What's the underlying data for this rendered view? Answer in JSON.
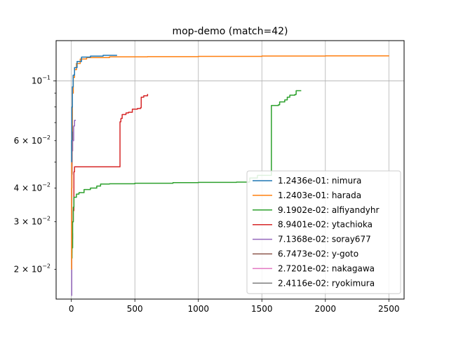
{
  "chart_data": {
    "type": "line",
    "title": "mop-demo (match=42)",
    "xlabel": "",
    "ylabel": "",
    "yscale": "log",
    "xlim": [
      -120,
      2620
    ],
    "ylim": [
      0.0155,
      0.141
    ],
    "grid": true,
    "legend_position": "lower right",
    "x_ticks": [
      {
        "value": 0,
        "label": "0"
      },
      {
        "value": 500,
        "label": "500"
      },
      {
        "value": 1000,
        "label": "1000"
      },
      {
        "value": 1500,
        "label": "1500"
      },
      {
        "value": 2000,
        "label": "2000"
      },
      {
        "value": 2500,
        "label": "2500"
      }
    ],
    "y_ticks": [
      {
        "value": 0.1,
        "base": "10",
        "exp": "−1",
        "coef": ""
      },
      {
        "value": 0.06,
        "base": "10",
        "exp": "−2",
        "coef": "6 × "
      },
      {
        "value": 0.04,
        "base": "10",
        "exp": "−2",
        "coef": "4 × "
      },
      {
        "value": 0.03,
        "base": "10",
        "exp": "−2",
        "coef": "3 × "
      },
      {
        "value": 0.02,
        "base": "10",
        "exp": "−2",
        "coef": "2 × "
      }
    ],
    "series": [
      {
        "name": "1.2436e-01: nimura",
        "color": "#1f77b4",
        "points": [
          [
            0,
            0.05
          ],
          [
            2,
            0.06
          ],
          [
            4,
            0.08
          ],
          [
            8,
            0.095
          ],
          [
            14,
            0.105
          ],
          [
            25,
            0.112
          ],
          [
            45,
            0.118
          ],
          [
            80,
            0.1225
          ],
          [
            150,
            0.1235
          ],
          [
            250,
            0.12436
          ],
          [
            360,
            0.12436
          ]
        ]
      },
      {
        "name": "1.2403e-01: harada",
        "color": "#ff7f0e",
        "points": [
          [
            0,
            0.02
          ],
          [
            2,
            0.04
          ],
          [
            4,
            0.065
          ],
          [
            8,
            0.09
          ],
          [
            15,
            0.103
          ],
          [
            25,
            0.11
          ],
          [
            40,
            0.116
          ],
          [
            70,
            0.1205
          ],
          [
            120,
            0.122
          ],
          [
            300,
            0.1228
          ],
          [
            600,
            0.123
          ],
          [
            1000,
            0.1232
          ],
          [
            1500,
            0.1236
          ],
          [
            2000,
            0.1238
          ],
          [
            2500,
            0.12403
          ]
        ]
      },
      {
        "name": "9.1902e-02: alfiyandyhr",
        "color": "#2ca02c",
        "points": [
          [
            0,
            0.022
          ],
          [
            5,
            0.024
          ],
          [
            10,
            0.03
          ],
          [
            15,
            0.034
          ],
          [
            20,
            0.037
          ],
          [
            40,
            0.038
          ],
          [
            60,
            0.0385
          ],
          [
            100,
            0.0395
          ],
          [
            150,
            0.04
          ],
          [
            200,
            0.0407
          ],
          [
            230,
            0.0414
          ],
          [
            300,
            0.0415
          ],
          [
            500,
            0.0417
          ],
          [
            800,
            0.0419
          ],
          [
            1000,
            0.042
          ],
          [
            1300,
            0.0421
          ],
          [
            1400,
            0.0422
          ],
          [
            1405,
            0.0436
          ],
          [
            1460,
            0.0436
          ],
          [
            1465,
            0.0446
          ],
          [
            1570,
            0.0446
          ],
          [
            1575,
            0.081
          ],
          [
            1630,
            0.0815
          ],
          [
            1640,
            0.0835
          ],
          [
            1680,
            0.085
          ],
          [
            1700,
            0.087
          ],
          [
            1720,
            0.0885
          ],
          [
            1760,
            0.089
          ],
          [
            1770,
            0.0919
          ],
          [
            1810,
            0.0919
          ]
        ]
      },
      {
        "name": "8.9401e-02: ytachioka",
        "color": "#d62728",
        "points": [
          [
            0,
            0.03
          ],
          [
            15,
            0.033
          ],
          [
            20,
            0.046
          ],
          [
            25,
            0.048
          ],
          [
            380,
            0.048
          ],
          [
            383,
            0.0705
          ],
          [
            390,
            0.0725
          ],
          [
            400,
            0.075
          ],
          [
            430,
            0.076
          ],
          [
            450,
            0.0765
          ],
          [
            480,
            0.0785
          ],
          [
            520,
            0.079
          ],
          [
            545,
            0.0795
          ],
          [
            550,
            0.087
          ],
          [
            570,
            0.088
          ],
          [
            600,
            0.0894
          ]
        ]
      },
      {
        "name": "7.1368e-02: soray677",
        "color": "#9467bd",
        "points": [
          [
            0,
            0.016
          ],
          [
            3,
            0.045
          ],
          [
            6,
            0.055
          ],
          [
            10,
            0.06
          ],
          [
            18,
            0.068
          ],
          [
            25,
            0.071368
          ],
          [
            35,
            0.071368
          ]
        ]
      },
      {
        "name": "6.7473e-02: y-goto",
        "color": "#8c564b",
        "points": [
          [
            0,
            0.035
          ],
          [
            3,
            0.05
          ],
          [
            6,
            0.06
          ],
          [
            9,
            0.067473
          ],
          [
            12,
            0.067473
          ]
        ]
      },
      {
        "name": "2.7201e-02: nakagawa",
        "color": "#e377c2",
        "points": [
          [
            0,
            0.024
          ],
          [
            5,
            0.026
          ],
          [
            10,
            0.027201
          ],
          [
            12,
            0.027201
          ]
        ]
      },
      {
        "name": "2.4116e-02: ryokimura",
        "color": "#7f7f7f",
        "points": [
          [
            0,
            0.023
          ],
          [
            4,
            0.024116
          ],
          [
            6,
            0.024116
          ]
        ]
      }
    ]
  }
}
